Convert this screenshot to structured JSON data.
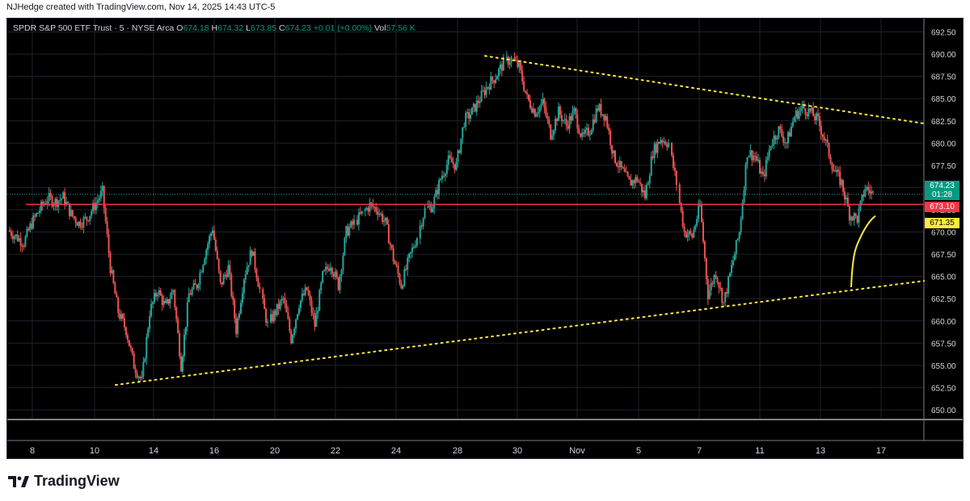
{
  "credit": "NJHedge created with TradingView.com, Nov 14, 2025 14:43 UTC-5",
  "legend": {
    "symbol": "SPDR S&P 500 ETF Trust · 5 · NYSE Arca",
    "o_label": "O",
    "o_value": "674.18",
    "h_label": "H",
    "h_value": "674.32",
    "l_label": "L",
    "l_value": "673.85",
    "c_label": "C",
    "c_value": "674.23",
    "change": "+0.01 (+0.00%)",
    "vol_label": "Vol",
    "vol_value": "57.56 K"
  },
  "badges": {
    "last_price": "674.23",
    "countdown": "01:28",
    "red_line": "673.10",
    "yellow_line": "671.35"
  },
  "brand": {
    "name": "TradingView"
  },
  "colors": {
    "up": "#26a69a",
    "down": "#ef5350",
    "background": "#000000",
    "trendline": "#ffeb3b",
    "horizontal": "#f23645",
    "ma": "#ffeb3b"
  },
  "chart_data": {
    "type": "candlestick",
    "title": "SPDR S&P 500 ETF Trust · 5 · NYSE Arca",
    "interval": "5",
    "ylim": [
      649,
      694
    ],
    "y_ticks": [
      "650.00",
      "652.50",
      "655.00",
      "657.50",
      "660.00",
      "662.50",
      "665.00",
      "667.50",
      "670.00",
      "672.50",
      "675.00",
      "677.50",
      "680.00",
      "682.50",
      "685.00",
      "687.50",
      "690.00",
      "692.50"
    ],
    "x_ticks": [
      "8",
      "10",
      "14",
      "16",
      "20",
      "22",
      "24",
      "28",
      "30",
      "Nov",
      "5",
      "7",
      "11",
      "13",
      "17"
    ],
    "close_path": [
      [
        "8",
        670.2
      ],
      [
        "8",
        669.5
      ],
      [
        "8",
        668.8
      ],
      [
        "8",
        671.0
      ],
      [
        "8",
        672.5
      ],
      [
        "8",
        673.8
      ],
      [
        "10",
        673.4
      ],
      [
        "10",
        673.9
      ],
      [
        "10",
        672.0
      ],
      [
        "10",
        671.0
      ],
      [
        "10",
        671.5
      ],
      [
        "10",
        673.0
      ],
      [
        "10",
        674.5
      ],
      [
        "10",
        666.0
      ],
      [
        "10",
        661.0
      ],
      [
        "10",
        659.0
      ],
      [
        "10",
        655.0
      ],
      [
        "10",
        653.2
      ],
      [
        "14",
        661.0
      ],
      [
        "14",
        663.5
      ],
      [
        "14",
        661.5
      ],
      [
        "14",
        663.5
      ],
      [
        "14",
        655.0
      ],
      [
        "14",
        663.0
      ],
      [
        "14",
        664.0
      ],
      [
        "14",
        667.5
      ],
      [
        "14",
        670.5
      ],
      [
        "16",
        664.0
      ],
      [
        "16",
        666.0
      ],
      [
        "16",
        659.0
      ],
      [
        "16",
        665.0
      ],
      [
        "16",
        668.0
      ],
      [
        "16",
        663.5
      ],
      [
        "16",
        659.5
      ],
      [
        "16",
        661.0
      ],
      [
        "16",
        662.5
      ],
      [
        "20",
        658.0
      ],
      [
        "20",
        662.0
      ],
      [
        "20",
        663.5
      ],
      [
        "20",
        659.5
      ],
      [
        "20",
        665.0
      ],
      [
        "20",
        666.5
      ],
      [
        "20",
        664.0
      ],
      [
        "20",
        670.0
      ],
      [
        "20",
        671.0
      ],
      [
        "22",
        672.0
      ],
      [
        "22",
        673.0
      ],
      [
        "22",
        672.5
      ],
      [
        "22",
        671.0
      ],
      [
        "22",
        667.0
      ],
      [
        "22",
        664.0
      ],
      [
        "22",
        667.0
      ],
      [
        "22",
        669.5
      ],
      [
        "22",
        672.5
      ],
      [
        "22",
        673.0
      ],
      [
        "24",
        676.0
      ],
      [
        "24",
        678.0
      ],
      [
        "24",
        677.5
      ],
      [
        "28",
        682.5
      ],
      [
        "28",
        683.5
      ],
      [
        "28",
        685.0
      ],
      [
        "28",
        686.5
      ],
      [
        "28",
        687.5
      ],
      [
        "28",
        689.0
      ],
      [
        "28",
        689.5
      ],
      [
        "30",
        688.5
      ],
      [
        "30",
        685.0
      ],
      [
        "30",
        683.5
      ],
      [
        "30",
        684.5
      ],
      [
        "30",
        681.0
      ],
      [
        "30",
        683.5
      ],
      [
        "30",
        682.0
      ],
      [
        "30",
        683.5
      ],
      [
        "30",
        680.5
      ],
      [
        "30",
        681.5
      ],
      [
        "30",
        684.0
      ],
      [
        "30",
        683.0
      ],
      [
        "Nov",
        678.5
      ],
      [
        "Nov",
        677.0
      ],
      [
        "Nov",
        675.5
      ],
      [
        "Nov",
        676.0
      ],
      [
        "5",
        674.0
      ],
      [
        "5",
        679.0
      ],
      [
        "5",
        680.5
      ],
      [
        "5",
        680.0
      ],
      [
        "5",
        675.5
      ],
      [
        "5",
        670.0
      ],
      [
        "5",
        669.5
      ],
      [
        "5",
        673.0
      ],
      [
        "7",
        663.0
      ],
      [
        "7",
        665.5
      ],
      [
        "7",
        662.0
      ],
      [
        "7",
        666.0
      ],
      [
        "7",
        670.0
      ],
      [
        "7",
        679.0
      ],
      [
        "7",
        678.5
      ],
      [
        "11",
        676.0
      ],
      [
        "11",
        680.0
      ],
      [
        "11",
        681.5
      ],
      [
        "11",
        680.0
      ],
      [
        "11",
        683.0
      ],
      [
        "11",
        684.0
      ],
      [
        "13",
        683.5
      ],
      [
        "13",
        682.5
      ],
      [
        "13",
        680.0
      ],
      [
        "13",
        677.0
      ],
      [
        "13",
        675.5
      ],
      [
        "13",
        672.0
      ],
      [
        "13",
        671.5
      ],
      [
        "13",
        675.0
      ],
      [
        "13",
        674.23
      ]
    ],
    "series": [
      {
        "name": "",
        "kind": "horizontal",
        "value": 673.1
      },
      {
        "name": "",
        "kind": "trendline",
        "points": [
          [
            "10",
            652.8
          ],
          [
            "17",
            664.5
          ]
        ]
      },
      {
        "name": "",
        "kind": "trendline",
        "points": [
          [
            "28",
            689.8
          ],
          [
            "17",
            682.2
          ]
        ]
      }
    ],
    "grid": true
  }
}
